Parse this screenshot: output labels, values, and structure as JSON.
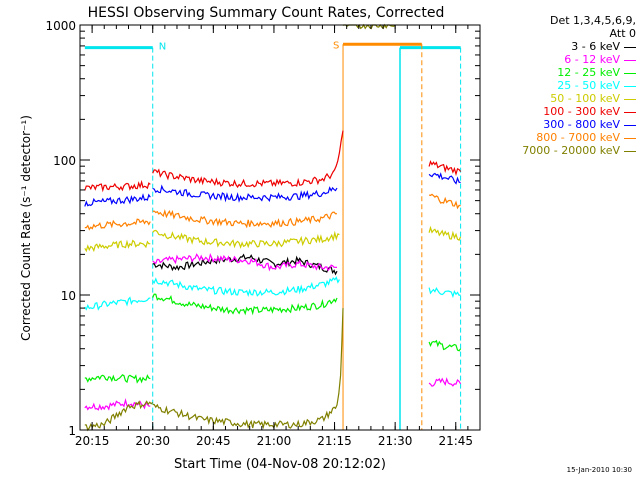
{
  "chart_data": {
    "type": "line",
    "title": "HESSI Observing Summary Count Rates, Corrected",
    "xlabel": "Start Time (04-Nov-08 20:12:02)",
    "ylabel": "Corrected Count Rate (s⁻¹ detector⁻¹)",
    "y_scale": "log",
    "ylim": [
      1,
      1000
    ],
    "xlim_minutes": [
      20.2,
      21.85
    ],
    "x_ticks": [
      {
        "label": "20:15",
        "t": 20.25
      },
      {
        "label": "20:30",
        "t": 20.5
      },
      {
        "label": "20:45",
        "t": 20.75
      },
      {
        "label": "21:00",
        "t": 21.0
      },
      {
        "label": "21:15",
        "t": 21.25
      },
      {
        "label": "21:30",
        "t": 21.5
      },
      {
        "label": "21:45",
        "t": 21.75
      }
    ],
    "y_ticks": [
      {
        "label": "1",
        "v": 1
      },
      {
        "label": "10",
        "v": 10
      },
      {
        "label": "100",
        "v": 100
      },
      {
        "label": "1000",
        "v": 1000
      }
    ],
    "annotations": {
      "N_label": "N",
      "S_label": "S",
      "night_color": "#00e5ee",
      "saa_color": "#ff8c00",
      "night_intervals": [
        [
          20.22,
          20.5
        ],
        [
          21.52,
          21.77
        ]
      ],
      "saa_interval": [
        21.285,
        21.61
      ],
      "night_level": 680,
      "saa_level": 720
    },
    "legend_header": [
      "Det 1,3,4,5,6,9,",
      "Att 0"
    ],
    "series": [
      {
        "name": "3 - 6 keV",
        "color": "#000000",
        "segments": [
          {
            "t": [
              20.5,
              20.6,
              20.75,
              20.9,
              21.0,
              21.1,
              21.2,
              21.26
            ],
            "v": [
              17,
              16,
              18,
              19,
              17,
              18,
              16,
              15
            ]
          }
        ]
      },
      {
        "name": "6 - 12 keV",
        "color": "#ff00ff",
        "segments": [
          {
            "t": [
              20.22,
              20.3,
              20.4,
              20.49
            ],
            "v": [
              1.5,
              1.5,
              1.6,
              1.5
            ]
          },
          {
            "t": [
              20.5,
              20.55,
              20.7,
              20.9,
              21.0,
              21.1,
              21.2,
              21.26
            ],
            "v": [
              17,
              18,
              19,
              18,
              16,
              17,
              16,
              16
            ]
          },
          {
            "t": [
              21.64,
              21.7,
              21.77
            ],
            "v": [
              2.2,
              2.3,
              2.2
            ]
          }
        ]
      },
      {
        "name": "12 - 25 keV",
        "color": "#00ee00",
        "segments": [
          {
            "t": [
              20.22,
              20.3,
              20.4,
              20.49
            ],
            "v": [
              2.4,
              2.5,
              2.4,
              2.4
            ]
          },
          {
            "t": [
              20.5,
              20.55,
              20.65,
              20.8,
              20.95,
              21.1,
              21.2,
              21.26
            ],
            "v": [
              10,
              9.5,
              8.5,
              7.8,
              7.7,
              8.0,
              8.5,
              9.5
            ]
          },
          {
            "t": [
              21.64,
              21.7,
              21.77
            ],
            "v": [
              4.5,
              4.2,
              4.0
            ]
          }
        ]
      },
      {
        "name": "25 - 50 keV",
        "color": "#00ffff",
        "segments": [
          {
            "t": [
              20.22,
              20.3,
              20.4,
              20.49
            ],
            "v": [
              8.0,
              8.5,
              9.0,
              9.5
            ]
          },
          {
            "t": [
              20.5,
              20.55,
              20.7,
              20.85,
              21.0,
              21.1,
              21.2,
              21.27
            ],
            "v": [
              13,
              12.5,
              11,
              10.5,
              10.5,
              11,
              12,
              13
            ]
          },
          {
            "t": [
              21.64,
              21.7,
              21.77
            ],
            "v": [
              11,
              10.5,
              10
            ]
          }
        ]
      },
      {
        "name": "50 - 100 keV",
        "color": "#cccc00",
        "segments": [
          {
            "t": [
              20.22,
              20.3,
              20.4,
              20.49
            ],
            "v": [
              22,
              23,
              24,
              24
            ]
          },
          {
            "t": [
              20.5,
              20.55,
              20.7,
              20.85,
              21.0,
              21.1,
              21.2,
              21.27
            ],
            "v": [
              30,
              28,
              25,
              24,
              24,
              25,
              26,
              28
            ]
          },
          {
            "t": [
              21.64,
              21.7,
              21.77
            ],
            "v": [
              30,
              28,
              27
            ]
          }
        ]
      },
      {
        "name": "100 - 300 keV",
        "color": "#ee0000",
        "segments": [
          {
            "t": [
              20.22,
              20.3,
              20.4,
              20.49
            ],
            "v": [
              62,
              63,
              64,
              66
            ]
          },
          {
            "t": [
              20.5,
              20.55,
              20.7,
              20.85,
              21.0,
              21.1,
              21.2,
              21.25,
              21.27,
              21.285
            ],
            "v": [
              82,
              78,
              70,
              67,
              67,
              68,
              72,
              80,
              110,
              165
            ]
          },
          {
            "t": [
              21.64,
              21.7,
              21.77
            ],
            "v": [
              95,
              88,
              82
            ]
          }
        ]
      },
      {
        "name": "300 - 800 keV",
        "color": "#0000ff",
        "segments": [
          {
            "t": [
              20.22,
              20.3,
              20.4,
              20.49
            ],
            "v": [
              48,
              49,
              51,
              53
            ]
          },
          {
            "t": [
              20.5,
              20.55,
              20.7,
              20.85,
              21.0,
              21.1,
              21.2,
              21.26
            ],
            "v": [
              62,
              60,
              55,
              53,
              53,
              54,
              57,
              62
            ]
          },
          {
            "t": [
              21.64,
              21.7,
              21.77
            ],
            "v": [
              80,
              75,
              68
            ]
          }
        ]
      },
      {
        "name": "800 - 7000 keV",
        "color": "#ff8000",
        "segments": [
          {
            "t": [
              20.22,
              20.3,
              20.4,
              20.49
            ],
            "v": [
              32,
              33,
              34,
              35
            ]
          },
          {
            "t": [
              20.5,
              20.55,
              20.7,
              20.85,
              21.0,
              21.1,
              21.2,
              21.26
            ],
            "v": [
              42,
              40,
              36,
              34,
              34,
              35,
              37,
              40
            ]
          },
          {
            "t": [
              21.64,
              21.7,
              21.77
            ],
            "v": [
              55,
              50,
              46
            ]
          }
        ]
      },
      {
        "name": "7000 - 20000 keV",
        "color": "#808000",
        "segments": [
          {
            "t": [
              20.22,
              20.3,
              20.4,
              20.5
            ],
            "v": [
              1.05,
              1.1,
              1.5,
              1.6
            ]
          },
          {
            "t": [
              20.5,
              20.7,
              20.9,
              21.1,
              21.2,
              21.26,
              21.275,
              21.285
            ],
            "v": [
              1.5,
              1.2,
              1.1,
              1.1,
              1.2,
              1.5,
              2.5,
              8
            ]
          },
          {
            "t": [
              21.285,
              21.29,
              21.5
            ],
            "v": [
              1000,
              1000,
              1000
            ]
          }
        ]
      }
    ]
  },
  "timestamp": "15-Jan-2010 10:30"
}
